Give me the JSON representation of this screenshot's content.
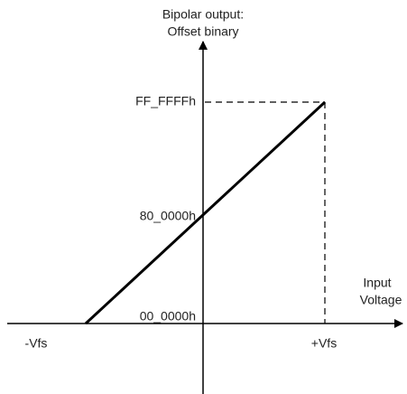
{
  "title": [
    "Bipolar output:",
    "Offset binary"
  ],
  "y_labels": [
    "FF_FFFFh",
    "80_0000h",
    "00_0000h"
  ],
  "x_axis_label": [
    "Input",
    "Voltage"
  ],
  "x_labels": [
    "-Vfs",
    "+Vfs"
  ]
}
